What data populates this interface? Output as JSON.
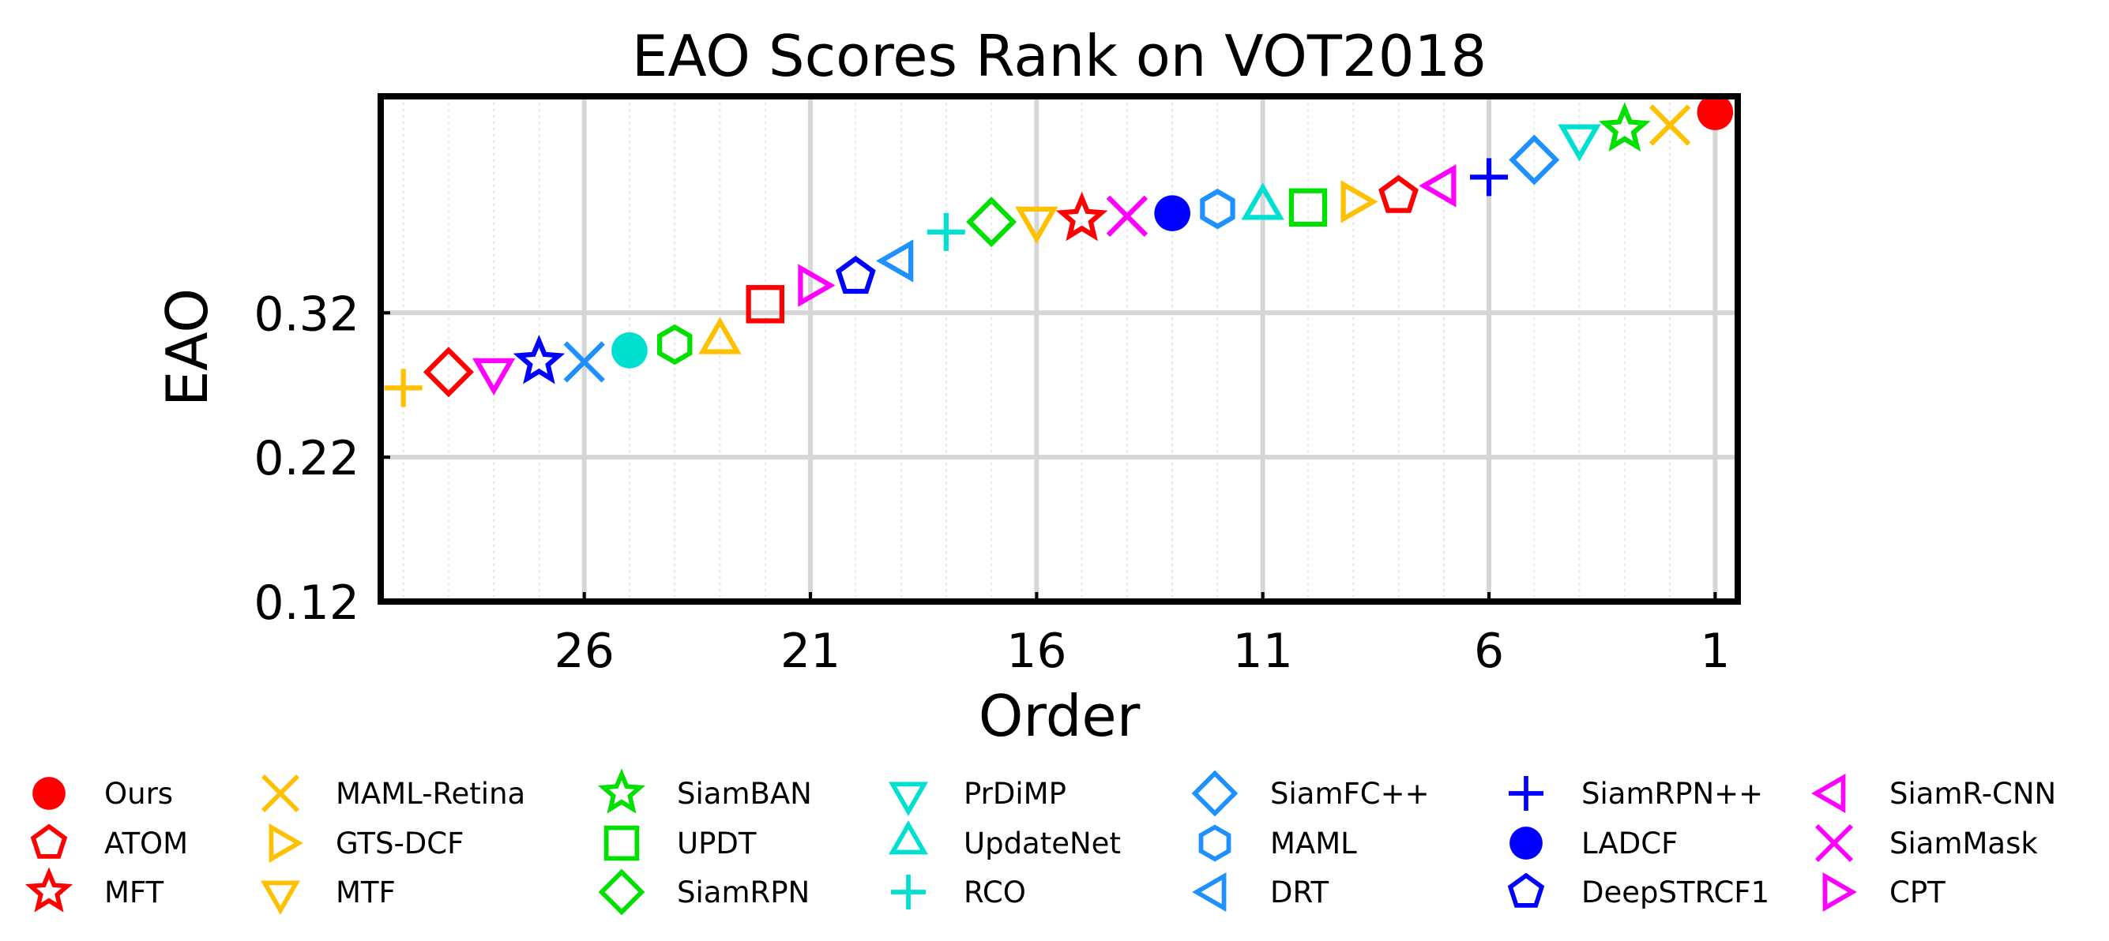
{
  "chart_data": {
    "type": "scatter",
    "title": "EAO Scores Rank on VOT2018",
    "xlabel": "Order",
    "ylabel": "EAO",
    "x_reversed": true,
    "xlim": [
      30.5,
      0.5
    ],
    "ylim": [
      0.12,
      0.47
    ],
    "xticks": [
      26,
      21,
      16,
      11,
      6,
      1
    ],
    "xtick_labels": [
      "26",
      "21",
      "16",
      "11",
      "6",
      "1"
    ],
    "yticks": [
      0.12,
      0.22,
      0.32
    ],
    "ytick_labels": [
      "0.12",
      "0.22",
      "0.32"
    ],
    "grid": true,
    "legend_position": "bottom",
    "series": [
      {
        "name": "Ours",
        "order": 1,
        "eao": 0.459,
        "marker": "circle-filled",
        "color": "#FF0000"
      },
      {
        "name": "MAML-Retina",
        "order": 2,
        "eao": 0.45,
        "marker": "x",
        "color": "#FFC000"
      },
      {
        "name": "SiamBAN",
        "order": 3,
        "eao": 0.447,
        "marker": "star",
        "color": "#00E000"
      },
      {
        "name": "PrDiMP",
        "order": 4,
        "eao": 0.442,
        "marker": "triangle-down",
        "color": "#00E0D0"
      },
      {
        "name": "SiamFC++",
        "order": 5,
        "eao": 0.426,
        "marker": "diamond",
        "color": "#1E90FF"
      },
      {
        "name": "SiamRPN++",
        "order": 6,
        "eao": 0.414,
        "marker": "plus",
        "color": "#0000FF"
      },
      {
        "name": "SiamR-CNN",
        "order": 7,
        "eao": 0.408,
        "marker": "triangle-left",
        "color": "#FF00FF"
      },
      {
        "name": "ATOM",
        "order": 8,
        "eao": 0.401,
        "marker": "pentagon",
        "color": "#FF0000"
      },
      {
        "name": "GTS-DCF",
        "order": 9,
        "eao": 0.397,
        "marker": "triangle-right",
        "color": "#FFC000"
      },
      {
        "name": "UPDT",
        "order": 10,
        "eao": 0.393,
        "marker": "square",
        "color": "#00E000"
      },
      {
        "name": "UpdateNet",
        "order": 11,
        "eao": 0.393,
        "marker": "triangle-up",
        "color": "#00E0D0"
      },
      {
        "name": "MAML",
        "order": 12,
        "eao": 0.392,
        "marker": "hexagon",
        "color": "#1E90FF"
      },
      {
        "name": "LADCF",
        "order": 13,
        "eao": 0.389,
        "marker": "circle-filled",
        "color": "#0000FF"
      },
      {
        "name": "SiamMask",
        "order": 14,
        "eao": 0.387,
        "marker": "x",
        "color": "#FF00FF"
      },
      {
        "name": "MFT",
        "order": 15,
        "eao": 0.385,
        "marker": "star",
        "color": "#FF0000"
      },
      {
        "name": "MTF",
        "order": 16,
        "eao": 0.385,
        "marker": "triangle-down",
        "color": "#FFC000"
      },
      {
        "name": "SiamRPN",
        "order": 17,
        "eao": 0.383,
        "marker": "diamond",
        "color": "#00E000"
      },
      {
        "name": "RCO",
        "order": 18,
        "eao": 0.376,
        "marker": "plus",
        "color": "#00E0D0"
      },
      {
        "name": "DRT",
        "order": 19,
        "eao": 0.356,
        "marker": "triangle-left",
        "color": "#1E90FF"
      },
      {
        "name": "DeepSTRCF1",
        "order": 20,
        "eao": 0.345,
        "marker": "pentagon",
        "color": "#0000FF"
      },
      {
        "name": "CPT",
        "order": 21,
        "eao": 0.339,
        "marker": "triangle-right",
        "color": "#FF00FF"
      },
      {
        "name": "",
        "order": 22,
        "eao": 0.326,
        "marker": "square",
        "color": "#FF0000"
      },
      {
        "name": "",
        "order": 23,
        "eao": 0.3,
        "marker": "triangle-up",
        "color": "#FFC000"
      },
      {
        "name": "",
        "order": 24,
        "eao": 0.298,
        "marker": "hexagon",
        "color": "#00E000"
      },
      {
        "name": "",
        "order": 25,
        "eao": 0.294,
        "marker": "circle-filled",
        "color": "#00E0D0"
      },
      {
        "name": "",
        "order": 26,
        "eao": 0.286,
        "marker": "x",
        "color": "#1E90FF"
      },
      {
        "name": "",
        "order": 27,
        "eao": 0.286,
        "marker": "star",
        "color": "#0000FF"
      },
      {
        "name": "",
        "order": 28,
        "eao": 0.28,
        "marker": "triangle-down",
        "color": "#FF00FF"
      },
      {
        "name": "",
        "order": 29,
        "eao": 0.279,
        "marker": "diamond",
        "color": "#FF0000"
      },
      {
        "name": "",
        "order": 30,
        "eao": 0.268,
        "marker": "plus",
        "color": "#FFC000"
      }
    ],
    "legend": [
      [
        "Ours",
        "ATOM",
        "MFT"
      ],
      [
        "MAML-Retina",
        "GTS-DCF",
        "MTF"
      ],
      [
        "SiamBAN",
        "UPDT",
        "SiamRPN"
      ],
      [
        "PrDiMP",
        "UpdateNet",
        "RCO"
      ],
      [
        "SiamFC++",
        "MAML",
        "DRT"
      ],
      [
        "SiamRPN++",
        "LADCF",
        "DeepSTRCF1"
      ],
      [
        "SiamR-CNN",
        "SiamMask",
        "CPT"
      ]
    ]
  }
}
